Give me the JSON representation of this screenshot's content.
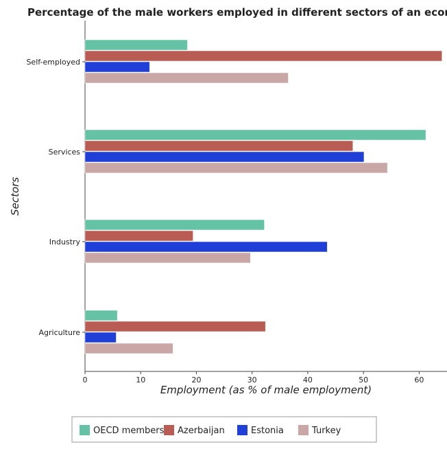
{
  "chart_data": {
    "type": "bar",
    "orientation": "horizontal",
    "title": "Percentage of the male workers employed in different sectors of an economy",
    "xlabel": "Employment (as % of male employment)",
    "ylabel": "Sectors",
    "categories": [
      "Agriculture",
      "Industry",
      "Services",
      "Self-employed"
    ],
    "xlim": [
      0,
      65
    ],
    "xticks": [
      "0",
      "10",
      "20",
      "30",
      "40",
      "50",
      "60"
    ],
    "grid": false,
    "legend_position": "bottom",
    "series": [
      {
        "name": "OECD members",
        "color": "#66c2a4",
        "values": [
          5.8,
          32.2,
          61.2,
          18.4
        ]
      },
      {
        "name": "Azerbaijan",
        "color": "#b85c54",
        "values": [
          32.4,
          19.4,
          48.1,
          64.1
        ]
      },
      {
        "name": "Estonia",
        "color": "#1f3fd6",
        "values": [
          5.6,
          43.5,
          50.1,
          11.6
        ]
      },
      {
        "name": "Turkey",
        "color": "#c9a7a6",
        "values": [
          15.8,
          29.7,
          54.3,
          36.5
        ]
      }
    ]
  }
}
